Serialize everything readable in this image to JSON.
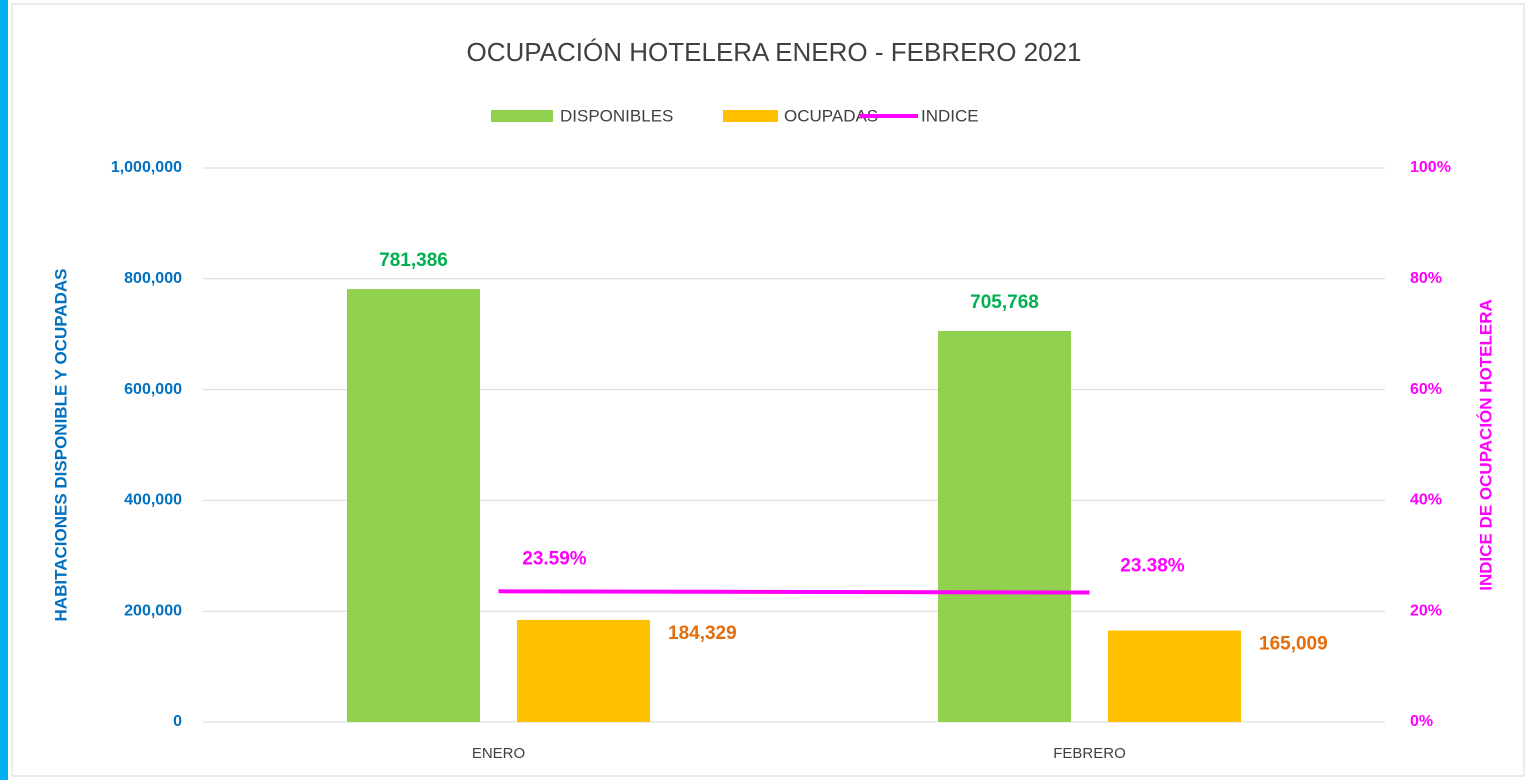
{
  "chart_data": {
    "type": "bar",
    "title": "OCUPACIÓN HOTELERA ENERO - FEBRERO 2021",
    "y_label": "HABITACIONES DISPONIBLE Y OCUPADAS",
    "y2_label": "INDICE DE OCUPACIÓN HOTELERA",
    "categories": [
      "ENERO",
      "FEBRERO"
    ],
    "series": [
      {
        "name": "DISPONIBLES",
        "type": "bar",
        "color": "#92d050",
        "label_color": "#00b050",
        "values": [
          781386,
          705768
        ],
        "value_labels": [
          "781,386",
          "705,768"
        ]
      },
      {
        "name": "OCUPADAS",
        "type": "bar",
        "color": "#ffc000",
        "label_color": "#e46c0a",
        "values": [
          184329,
          165009
        ],
        "value_labels": [
          "184,329",
          "165,009"
        ]
      },
      {
        "name": "INDICE",
        "type": "line",
        "axis": "y2",
        "color": "#ff00ff",
        "label_color": "#ff00ff",
        "values": [
          23.59,
          23.38
        ],
        "value_labels": [
          "23.59%",
          "23.38%"
        ]
      }
    ],
    "ylim": [
      0,
      1000000
    ],
    "yticks": [
      {
        "value": 0,
        "label": "0"
      },
      {
        "value": 200000,
        "label": "200,000"
      },
      {
        "value": 400000,
        "label": "400,000"
      },
      {
        "value": 600000,
        "label": "600,000"
      },
      {
        "value": 800000,
        "label": "800,000"
      },
      {
        "value": 1000000,
        "label": "1,000,000"
      }
    ],
    "y2lim": [
      0,
      100
    ],
    "y2ticks": [
      {
        "value": 0,
        "label": "0%"
      },
      {
        "value": 20,
        "label": "20%"
      },
      {
        "value": 40,
        "label": "40%"
      },
      {
        "value": 60,
        "label": "60%"
      },
      {
        "value": 80,
        "label": "80%"
      },
      {
        "value": 100,
        "label": "100%"
      }
    ],
    "grid": true,
    "legend": "top"
  }
}
